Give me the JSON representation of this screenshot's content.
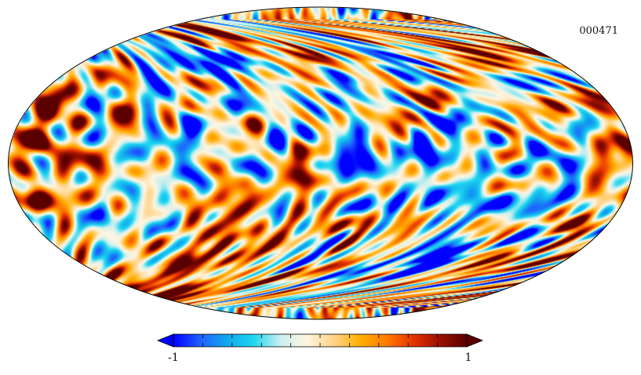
{
  "map": {
    "id_label": "000471",
    "projection": "mollweide",
    "seed": 471
  },
  "colorbar": {
    "min_label": "-1",
    "max_label": "1",
    "min": -1,
    "max": 1,
    "extend": "both",
    "tick_count": 11,
    "colors": [
      "#0000ff",
      "#1f60ff",
      "#12a8ee",
      "#1fd6f0",
      "#c8efef",
      "#fff6e0",
      "#ffd48a",
      "#ffb000",
      "#ff7a00",
      "#e53300",
      "#991100",
      "#5a0000"
    ]
  }
}
